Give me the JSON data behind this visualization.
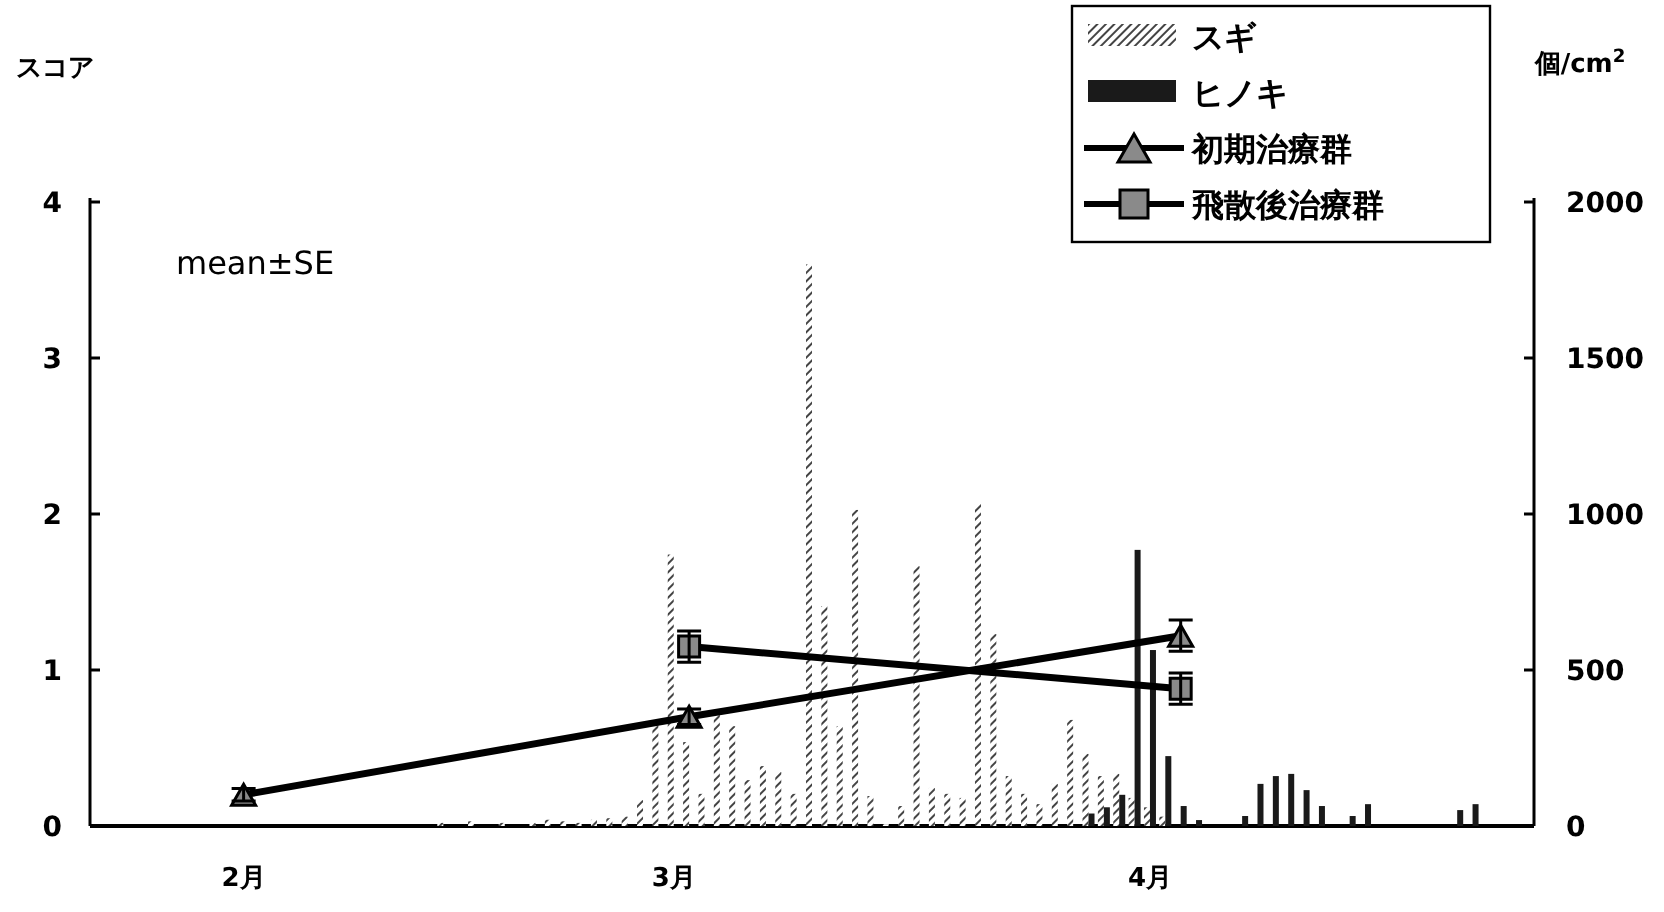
{
  "chart_data": {
    "type": "bar",
    "ylabel": "スコア",
    "y2label": "個/cm$^{2}$",
    "annotations": [
      "mean±SE"
    ],
    "xlim": [
      "--01-22",
      "--04-26"
    ],
    "xticks": [
      {
        "value": "--02-01",
        "label": "2月"
      },
      {
        "value": "--03-01",
        "label": "3月"
      },
      {
        "value": "--04-01",
        "label": "4月"
      }
    ],
    "ylim": [
      0,
      4
    ],
    "yticks": [
      0,
      1,
      2,
      3,
      4
    ],
    "y2lim": [
      0,
      2000
    ],
    "y2ticks": [
      0,
      500,
      1000,
      1500,
      2000
    ],
    "legend": "top right",
    "series": [
      {
        "name": "スギ",
        "axis": "y2",
        "color": "#444444",
        "x": [
          "--02-14",
          "--02-16",
          "--02-18",
          "--02-20",
          "--02-21",
          "--02-22",
          "--02-23",
          "--02-24",
          "--02-25",
          "--02-26",
          "--02-27",
          "--02-28",
          "--03-01",
          "--03-02",
          "--03-03",
          "--03-04",
          "--03-05",
          "--03-06",
          "--03-07",
          "--03-08",
          "--03-09",
          "--03-10",
          "--03-11",
          "--03-12",
          "--03-13",
          "--03-14",
          "--03-15",
          "--03-16",
          "--03-17",
          "--03-18",
          "--03-19",
          "--03-20",
          "--03-21",
          "--03-22",
          "--03-23",
          "--03-24",
          "--03-25",
          "--03-26",
          "--03-27",
          "--03-28",
          "--03-29",
          "--03-30",
          "--03-31",
          "--04-01",
          "--04-02"
        ],
        "values": [
          10,
          15,
          10,
          10,
          20,
          15,
          10,
          20,
          25,
          30,
          83,
          327,
          870,
          269,
          103,
          372,
          320,
          147,
          192,
          173,
          103,
          1800,
          705,
          320,
          1013,
          96,
          6,
          64,
          833,
          122,
          103,
          90,
          1032,
          615,
          160,
          103,
          70,
          135,
          340,
          231,
          160,
          167,
          90,
          60,
          30
        ]
      },
      {
        "name": "ヒノキ",
        "axis": "y2",
        "color": "#1a1a1a",
        "x": [
          "--03-28",
          "--03-29",
          "--03-30",
          "--03-31",
          "--04-01",
          "--04-02",
          "--04-03",
          "--04-04",
          "--04-07",
          "--04-08",
          "--04-09",
          "--04-10",
          "--04-11",
          "--04-12",
          "--04-14",
          "--04-15",
          "--04-21",
          "--04-22"
        ],
        "values": [
          40,
          60,
          100,
          885,
          564,
          224,
          64,
          19,
          32,
          135,
          160,
          167,
          115,
          64,
          32,
          70,
          51,
          70
        ]
      },
      {
        "name": "初期治療群",
        "type": "line",
        "color": "#000000",
        "marker": "triangle",
        "x": [
          "--02-01",
          "--03-02",
          "--04-03"
        ],
        "values": [
          0.2,
          0.7,
          1.22
        ],
        "errors": [
          0.04,
          0.05,
          0.1
        ]
      },
      {
        "name": "飛散後治療群",
        "type": "line",
        "color": "#000000",
        "marker": "square",
        "x": [
          "--03-02",
          "--04-03"
        ],
        "values": [
          1.15,
          0.88
        ],
        "errors": [
          0.1,
          0.1
        ]
      }
    ]
  }
}
